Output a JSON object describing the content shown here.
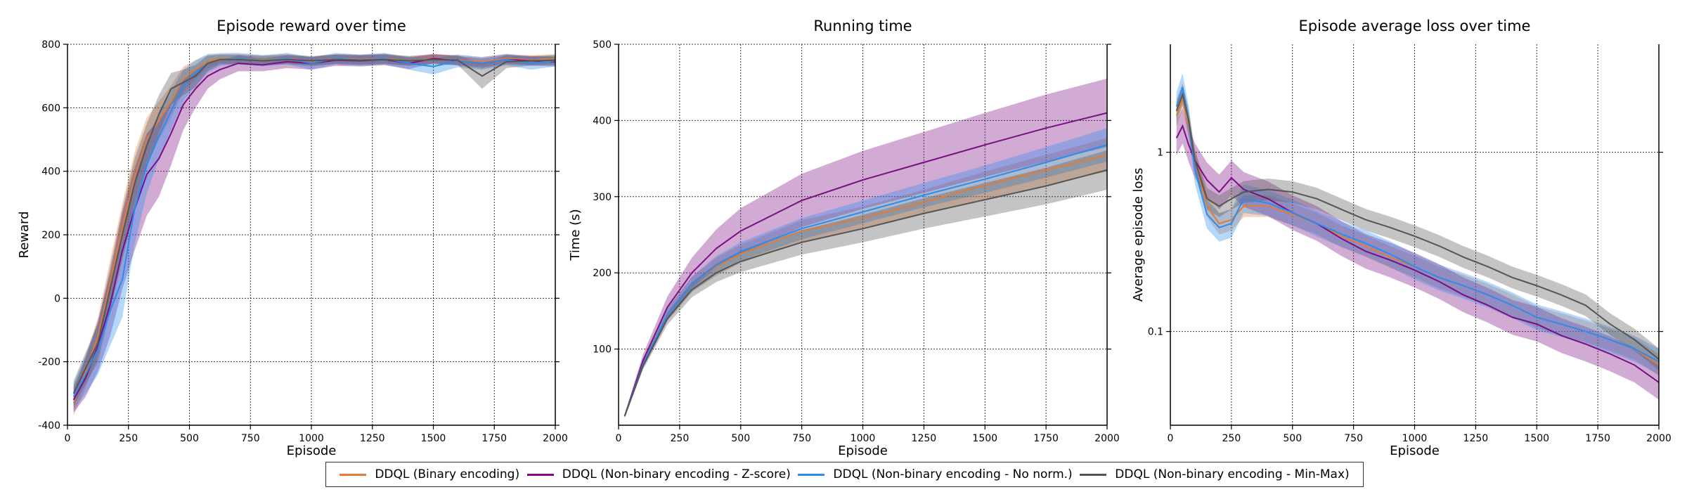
{
  "colors": {
    "binary": "#e07b39",
    "zscore": "#7b0e84",
    "nonorm": "#2b8cf0",
    "minmax": "#555555"
  },
  "legend": [
    {
      "label": "DDQL (Binary encoding)",
      "color": "#e07b39"
    },
    {
      "label": "DDQL (Non-binary encoding - Z-score)",
      "color": "#7b0e84"
    },
    {
      "label": "DDQL (Non-binary encoding - No norm.)",
      "color": "#2b8cf0"
    },
    {
      "label": "DDQL (Non-binary encoding - Min-Max)",
      "color": "#555555"
    }
  ],
  "chart_data": [
    {
      "type": "line",
      "title": "Episode reward over time",
      "xlabel": "Episode",
      "ylabel": "Reward",
      "xlim": [
        0,
        2000
      ],
      "ylim": [
        -400,
        800
      ],
      "xticks": [
        0,
        250,
        500,
        750,
        1000,
        1250,
        1500,
        1750,
        2000
      ],
      "yticks": [
        -400,
        -200,
        0,
        200,
        400,
        600,
        800
      ],
      "grid": true,
      "x": [
        25,
        75,
        125,
        175,
        225,
        275,
        325,
        375,
        425,
        475,
        525,
        575,
        625,
        700,
        800,
        900,
        1000,
        1100,
        1200,
        1300,
        1400,
        1500,
        1600,
        1700,
        1800,
        1900,
        2000
      ],
      "series": [
        {
          "name": "DDQL (Binary encoding)",
          "values": [
            -330,
            -230,
            -120,
            50,
            220,
            380,
            500,
            560,
            620,
            690,
            720,
            745,
            755,
            755,
            750,
            755,
            745,
            755,
            752,
            755,
            748,
            755,
            750,
            745,
            755,
            750,
            755
          ],
          "spread": [
            40,
            50,
            60,
            70,
            80,
            80,
            70,
            60,
            50,
            40,
            30,
            20,
            15,
            15,
            15,
            15,
            15,
            15,
            15,
            15,
            15,
            15,
            15,
            15,
            15,
            15,
            15
          ]
        },
        {
          "name": "DDQL (Non-binary encoding - Z-score)",
          "values": [
            -320,
            -250,
            -150,
            -20,
            150,
            280,
            390,
            440,
            520,
            610,
            660,
            700,
            720,
            740,
            735,
            745,
            740,
            750,
            748,
            752,
            740,
            755,
            748,
            740,
            752,
            748,
            745
          ],
          "spread": [
            40,
            60,
            80,
            100,
            120,
            130,
            130,
            120,
            100,
            80,
            60,
            40,
            30,
            25,
            20,
            20,
            20,
            18,
            18,
            18,
            18,
            15,
            15,
            15,
            15,
            15,
            15
          ]
        },
        {
          "name": "DDQL (Non-binary encoding - No norm.)",
          "values": [
            -310,
            -240,
            -160,
            -40,
            60,
            280,
            420,
            510,
            590,
            670,
            710,
            740,
            752,
            755,
            748,
            755,
            740,
            755,
            750,
            755,
            740,
            730,
            748,
            740,
            752,
            740,
            748
          ],
          "spread": [
            40,
            60,
            80,
            110,
            120,
            110,
            90,
            70,
            60,
            50,
            40,
            30,
            20,
            18,
            18,
            18,
            20,
            18,
            18,
            18,
            20,
            25,
            20,
            20,
            18,
            20,
            18
          ]
        },
        {
          "name": "DDQL (Non-binary encoding - Min-Max)",
          "values": [
            -300,
            -220,
            -140,
            30,
            200,
            360,
            480,
            580,
            660,
            680,
            700,
            740,
            752,
            752,
            748,
            752,
            748,
            752,
            750,
            752,
            748,
            752,
            750,
            700,
            745,
            748,
            750
          ],
          "spread": [
            40,
            50,
            60,
            70,
            80,
            80,
            70,
            60,
            50,
            40,
            35,
            25,
            15,
            15,
            15,
            15,
            15,
            15,
            15,
            15,
            15,
            15,
            15,
            40,
            20,
            15,
            15
          ]
        }
      ]
    },
    {
      "type": "line",
      "title": "Running time",
      "xlabel": "Episode",
      "ylabel": "Time (s)",
      "xlim": [
        0,
        2000
      ],
      "ylim": [
        0,
        500
      ],
      "xticks": [
        0,
        250,
        500,
        750,
        1000,
        1250,
        1500,
        1750,
        2000
      ],
      "yticks": [
        100,
        200,
        300,
        400,
        500
      ],
      "grid": true,
      "x": [
        25,
        100,
        200,
        300,
        400,
        500,
        750,
        1000,
        1250,
        1500,
        1750,
        2000
      ],
      "series": [
        {
          "name": "DDQL (Binary encoding)",
          "values": [
            12,
            80,
            145,
            185,
            208,
            225,
            255,
            272,
            293,
            315,
            335,
            355
          ],
          "spread": [
            2,
            5,
            8,
            10,
            12,
            12,
            14,
            15,
            16,
            18,
            20,
            22
          ]
        },
        {
          "name": "DDQL (Non-binary encoding - Z-score)",
          "values": [
            12,
            85,
            155,
            200,
            232,
            255,
            295,
            322,
            345,
            368,
            390,
            410
          ],
          "spread": [
            2,
            8,
            14,
            20,
            25,
            30,
            35,
            38,
            40,
            42,
            44,
            45
          ]
        },
        {
          "name": "DDQL (Non-binary encoding - No norm.)",
          "values": [
            12,
            80,
            145,
            185,
            210,
            228,
            258,
            280,
            302,
            323,
            345,
            368
          ],
          "spread": [
            2,
            5,
            8,
            10,
            12,
            12,
            14,
            15,
            16,
            18,
            20,
            22
          ]
        },
        {
          "name": "DDQL (Non-binary encoding - Min-Max)",
          "values": [
            12,
            78,
            140,
            178,
            200,
            215,
            240,
            258,
            278,
            296,
            314,
            335
          ],
          "spread": [
            2,
            5,
            8,
            10,
            12,
            14,
            16,
            18,
            20,
            22,
            24,
            26
          ]
        }
      ]
    },
    {
      "type": "line",
      "title": "Episode average loss over time",
      "xlabel": "Episode",
      "ylabel": "Average episode loss",
      "xlim": [
        0,
        2000
      ],
      "ylim": [
        0.03,
        4
      ],
      "yscale": "log",
      "xticks": [
        0,
        250,
        500,
        750,
        1000,
        1250,
        1500,
        1750,
        2000
      ],
      "yticks": [
        0.1,
        1
      ],
      "yticklabels": [
        "0.1",
        "1"
      ],
      "grid": true,
      "x": [
        25,
        50,
        75,
        100,
        150,
        200,
        250,
        300,
        400,
        500,
        600,
        700,
        800,
        900,
        1000,
        1100,
        1200,
        1300,
        1400,
        1500,
        1600,
        1700,
        1800,
        1900,
        2000
      ],
      "series": [
        {
          "name": "DDQL (Binary encoding)",
          "values": [
            1.6,
            2.0,
            1.4,
            0.9,
            0.5,
            0.4,
            0.42,
            0.5,
            0.5,
            0.45,
            0.4,
            0.34,
            0.3,
            0.26,
            0.23,
            0.2,
            0.18,
            0.16,
            0.14,
            0.12,
            0.11,
            0.1,
            0.09,
            0.08,
            0.065
          ],
          "spread": [
            0.15,
            0.15,
            0.15,
            0.15,
            0.15,
            0.15,
            0.15,
            0.15,
            0.15,
            0.15,
            0.15,
            0.15,
            0.15,
            0.15,
            0.15,
            0.15,
            0.15,
            0.15,
            0.15,
            0.15,
            0.15,
            0.15,
            0.15,
            0.15,
            0.15
          ]
        },
        {
          "name": "DDQL (Non-binary encoding - Z-score)",
          "values": [
            1.2,
            1.4,
            1.1,
            0.9,
            0.7,
            0.6,
            0.72,
            0.62,
            0.55,
            0.46,
            0.4,
            0.33,
            0.28,
            0.25,
            0.22,
            0.19,
            0.16,
            0.14,
            0.12,
            0.11,
            0.095,
            0.085,
            0.075,
            0.065,
            0.052
          ],
          "spread": [
            0.25,
            0.25,
            0.25,
            0.25,
            0.25,
            0.25,
            0.25,
            0.25,
            0.25,
            0.25,
            0.25,
            0.25,
            0.25,
            0.25,
            0.25,
            0.25,
            0.25,
            0.25,
            0.25,
            0.25,
            0.25,
            0.25,
            0.25,
            0.25,
            0.25
          ]
        },
        {
          "name": "DDQL (Non-binary encoding - No norm.)",
          "values": [
            1.8,
            2.3,
            1.5,
            0.8,
            0.45,
            0.38,
            0.4,
            0.55,
            0.52,
            0.46,
            0.4,
            0.35,
            0.31,
            0.27,
            0.23,
            0.2,
            0.18,
            0.16,
            0.14,
            0.12,
            0.11,
            0.1,
            0.09,
            0.08,
            0.068
          ],
          "spread": [
            0.2,
            0.2,
            0.2,
            0.2,
            0.2,
            0.2,
            0.2,
            0.2,
            0.18,
            0.18,
            0.18,
            0.18,
            0.18,
            0.18,
            0.18,
            0.18,
            0.18,
            0.18,
            0.18,
            0.18,
            0.18,
            0.18,
            0.18,
            0.18,
            0.18
          ]
        },
        {
          "name": "DDQL (Non-binary encoding - Min-Max)",
          "values": [
            1.7,
            2.1,
            1.5,
            0.9,
            0.55,
            0.5,
            0.55,
            0.6,
            0.62,
            0.6,
            0.55,
            0.48,
            0.42,
            0.38,
            0.34,
            0.3,
            0.26,
            0.23,
            0.2,
            0.18,
            0.16,
            0.14,
            0.11,
            0.09,
            0.07
          ],
          "spread": [
            0.15,
            0.15,
            0.15,
            0.15,
            0.15,
            0.15,
            0.15,
            0.15,
            0.15,
            0.15,
            0.15,
            0.15,
            0.15,
            0.15,
            0.15,
            0.15,
            0.15,
            0.15,
            0.15,
            0.15,
            0.15,
            0.15,
            0.15,
            0.15,
            0.15
          ]
        }
      ]
    }
  ]
}
